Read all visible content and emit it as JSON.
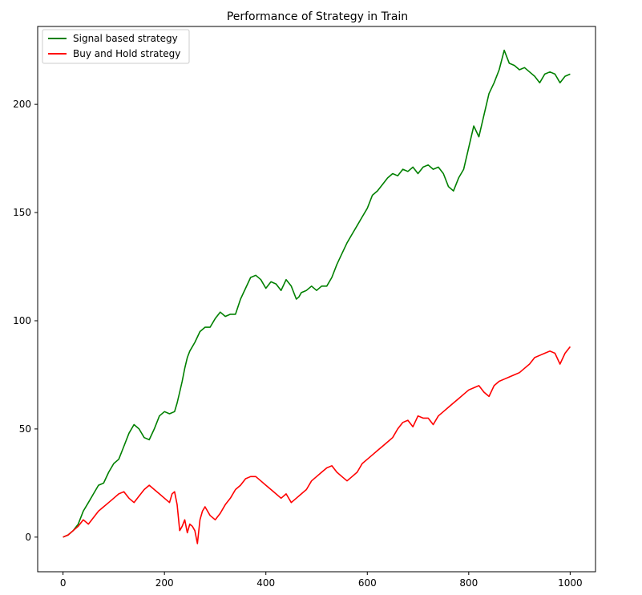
{
  "chart_data": {
    "type": "line",
    "title": "Performance of Strategy in Train",
    "xlabel": "",
    "ylabel": "",
    "xlim": [
      -50,
      1050
    ],
    "ylim": [
      -16,
      236
    ],
    "xticks": [
      0,
      200,
      400,
      600,
      800,
      1000
    ],
    "yticks": [
      0,
      50,
      100,
      150,
      200
    ],
    "grid": false,
    "legend_position": "top-left",
    "series": [
      {
        "name": "Signal based strategy",
        "color": "#008000",
        "x": [
          0,
          10,
          20,
          30,
          40,
          50,
          60,
          70,
          80,
          90,
          100,
          110,
          120,
          130,
          140,
          150,
          160,
          170,
          180,
          190,
          200,
          210,
          220,
          225,
          230,
          235,
          240,
          245,
          250,
          260,
          270,
          280,
          290,
          300,
          310,
          320,
          330,
          340,
          350,
          360,
          370,
          380,
          390,
          400,
          410,
          420,
          430,
          440,
          450,
          460,
          465,
          470,
          480,
          490,
          500,
          510,
          520,
          530,
          540,
          550,
          560,
          570,
          580,
          590,
          600,
          610,
          620,
          630,
          640,
          650,
          660,
          670,
          680,
          690,
          700,
          710,
          720,
          730,
          740,
          750,
          760,
          770,
          780,
          790,
          800,
          810,
          820,
          830,
          840,
          850,
          860,
          870,
          880,
          890,
          900,
          910,
          920,
          930,
          940,
          950,
          960,
          970,
          980,
          990,
          1000
        ],
        "values": [
          0,
          1,
          3,
          6,
          12,
          16,
          20,
          24,
          25,
          30,
          34,
          36,
          42,
          48,
          52,
          50,
          46,
          45,
          50,
          56,
          58,
          57,
          58,
          62,
          67,
          72,
          78,
          83,
          86,
          90,
          95,
          97,
          97,
          101,
          104,
          102,
          103,
          103,
          110,
          115,
          120,
          121,
          119,
          115,
          118,
          117,
          114,
          119,
          116,
          110,
          111,
          113,
          114,
          116,
          114,
          116,
          116,
          120,
          126,
          131,
          136,
          140,
          144,
          148,
          152,
          158,
          160,
          163,
          166,
          168,
          167,
          170,
          169,
          171,
          168,
          171,
          172,
          170,
          171,
          168,
          162,
          160,
          166,
          170,
          180,
          190,
          185,
          195,
          205,
          210,
          216,
          225,
          219,
          218,
          216,
          217,
          215,
          213,
          210,
          214,
          215,
          214,
          210,
          213,
          214
        ]
      },
      {
        "name": "Buy and Hold strategy",
        "color": "#ff0000",
        "x": [
          0,
          10,
          20,
          30,
          40,
          50,
          60,
          70,
          80,
          90,
          100,
          110,
          120,
          130,
          140,
          150,
          160,
          170,
          180,
          190,
          200,
          210,
          215,
          220,
          225,
          230,
          235,
          240,
          245,
          250,
          255,
          260,
          265,
          270,
          275,
          280,
          290,
          300,
          310,
          320,
          330,
          340,
          350,
          360,
          370,
          380,
          390,
          400,
          410,
          420,
          430,
          440,
          450,
          460,
          470,
          480,
          490,
          500,
          510,
          520,
          530,
          540,
          550,
          560,
          570,
          580,
          590,
          600,
          610,
          620,
          630,
          640,
          650,
          660,
          670,
          680,
          690,
          700,
          710,
          720,
          730,
          740,
          750,
          760,
          770,
          780,
          790,
          800,
          810,
          820,
          830,
          840,
          850,
          860,
          870,
          880,
          890,
          900,
          910,
          920,
          930,
          940,
          950,
          960,
          970,
          980,
          990,
          1000
        ],
        "values": [
          0,
          1,
          3,
          5,
          8,
          6,
          9,
          12,
          14,
          16,
          18,
          20,
          21,
          18,
          16,
          19,
          22,
          24,
          22,
          20,
          18,
          16,
          20,
          21,
          15,
          3,
          5,
          8,
          2,
          6,
          5,
          3,
          -3,
          8,
          12,
          14,
          10,
          8,
          11,
          15,
          18,
          22,
          24,
          27,
          28,
          28,
          26,
          24,
          22,
          20,
          18,
          20,
          16,
          18,
          20,
          22,
          26,
          28,
          30,
          32,
          33,
          30,
          28,
          26,
          28,
          30,
          34,
          36,
          38,
          40,
          42,
          44,
          46,
          50,
          53,
          54,
          51,
          56,
          55,
          55,
          52,
          56,
          58,
          60,
          62,
          64,
          66,
          68,
          69,
          70,
          67,
          65,
          70,
          72,
          73,
          74,
          75,
          76,
          78,
          80,
          83,
          84,
          85,
          86,
          85,
          80,
          85,
          88
        ]
      }
    ]
  }
}
